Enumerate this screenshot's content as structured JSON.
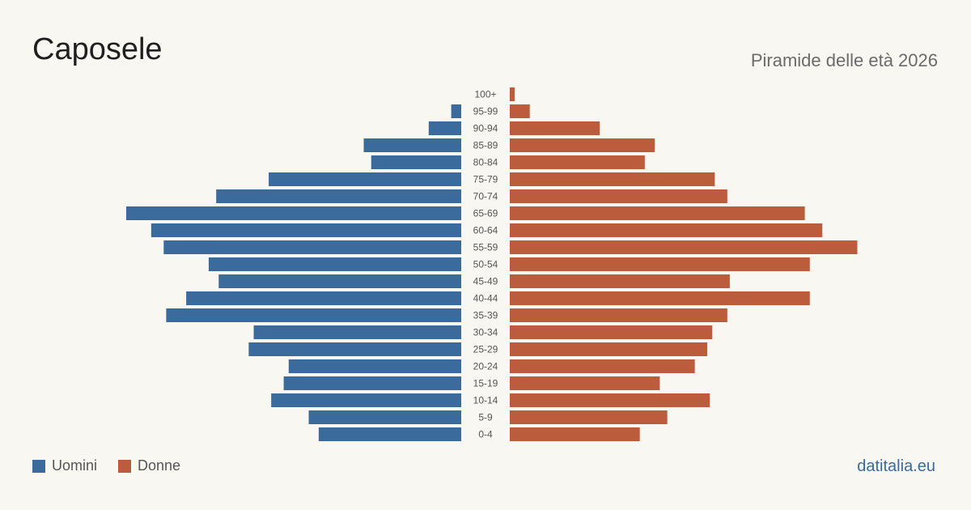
{
  "header": {
    "title": "Caposele",
    "subtitle": "Piramide delle età 2026"
  },
  "legend": {
    "men_label": "Uomini",
    "women_label": "Donne"
  },
  "brand": "datitalia.eu",
  "colors": {
    "men": "#3a6b9c",
    "women": "#bb5d3c",
    "background": "#f9f7f2"
  },
  "chart_data": {
    "type": "bar",
    "orientation": "horizontal-pyramid",
    "categories": [
      "100+",
      "95-99",
      "90-94",
      "85-89",
      "80-84",
      "75-79",
      "70-74",
      "65-69",
      "60-64",
      "55-59",
      "50-54",
      "45-49",
      "40-44",
      "35-39",
      "30-34",
      "25-29",
      "20-24",
      "15-19",
      "10-14",
      "5-9",
      "0-4"
    ],
    "series": [
      {
        "name": "Uomini",
        "values": [
          0,
          4,
          13,
          39,
          36,
          77,
          98,
          134,
          124,
          119,
          101,
          97,
          110,
          118,
          83,
          85,
          69,
          71,
          76,
          61,
          57
        ]
      },
      {
        "name": "Donne",
        "values": [
          2,
          8,
          36,
          58,
          54,
          82,
          87,
          118,
          125,
          139,
          120,
          88,
          120,
          87,
          81,
          79,
          74,
          60,
          80,
          63,
          52
        ]
      }
    ],
    "xlim": [
      0,
      140
    ],
    "legend_position": "bottom-left"
  }
}
